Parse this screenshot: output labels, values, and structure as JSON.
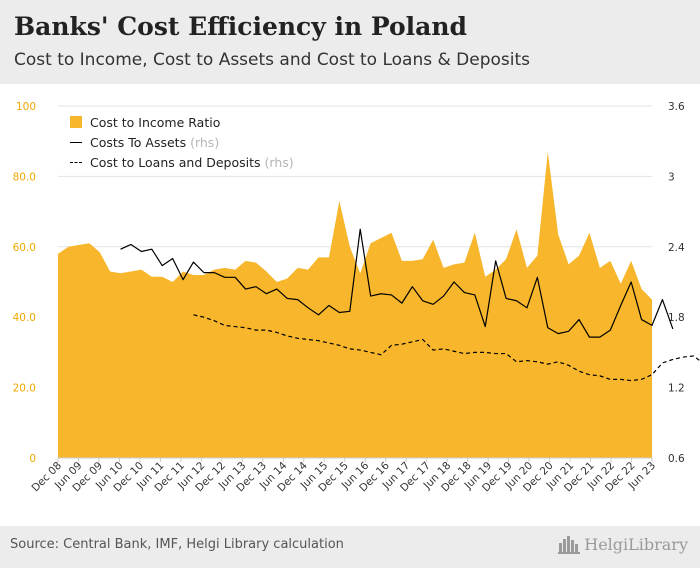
{
  "header": {
    "title": "Banks' Cost Efficiency in Poland",
    "subtitle": "Cost to Income, Cost to Assets and Cost to Loans & Deposits"
  },
  "footer": {
    "source": "Source: Central Bank, IMF, Helgi Library calculation",
    "brand": "HelgiLibrary",
    "brand_icon": "city-skyline-icon"
  },
  "legend": {
    "items": [
      {
        "label": "Cost to Income Ratio",
        "suffix": ""
      },
      {
        "label": "Costs To Assets",
        "suffix": "(rhs)"
      },
      {
        "label": "Cost to Loans and Deposits",
        "suffix": "(rhs)"
      }
    ]
  },
  "colors": {
    "area": "#f7b62b",
    "left_axis_text": "#f0a800",
    "right_axis_text": "#333333",
    "grid": "#e3e3e3"
  },
  "chart_data": {
    "type": "area",
    "left_axis": {
      "ylim": [
        0,
        100
      ],
      "ticks": [
        "0",
        "20.0",
        "40.0",
        "60.0",
        "80.0",
        "100"
      ]
    },
    "right_axis": {
      "ylim": [
        0.6,
        3.6
      ],
      "ticks": [
        "0.6",
        "1.2",
        "1.8",
        "2.4",
        "3",
        "3.6"
      ]
    },
    "x_labels": [
      "Dec 08",
      "Jun 09",
      "Dec 09",
      "Jun 10",
      "Dec 10",
      "Jun 11",
      "Dec 11",
      "Jun 12",
      "Dec 12",
      "Jun 13",
      "Dec 13",
      "Jun 14",
      "Dec 14",
      "Jun 15",
      "Dec 15",
      "Jun 16",
      "Dec 16",
      "Jun 17",
      "Dec 17",
      "Jun 18",
      "Dec 18",
      "Jun 19",
      "Dec 19",
      "Jun 20",
      "Dec 20",
      "Jun 21",
      "Dec 21",
      "Jun 22",
      "Dec 22",
      "Jun 23"
    ],
    "series": [
      {
        "name": "Cost to Income Ratio",
        "axis": "left",
        "style": "area",
        "values": [
          58.0,
          60.0,
          60.5,
          61.0,
          58.5,
          53.0,
          52.5,
          53.0,
          53.5,
          51.5,
          51.5,
          50.0,
          53.0,
          52.0,
          52.0,
          53.5,
          54.0,
          53.5,
          56.0,
          55.5,
          53.0,
          50.0,
          51.0,
          54.0,
          53.5,
          57.0,
          57.0,
          73.0,
          60.0,
          52.5,
          61.0,
          62.5,
          64.0,
          56.0,
          56.0,
          56.5,
          62.0,
          54.0,
          55.0,
          55.5,
          64.0,
          51.5,
          53.5,
          56.5,
          65.0,
          54.0,
          57.5,
          87.0,
          63.5,
          55.0,
          57.5,
          64.0,
          54.0,
          56.0,
          49.5,
          56.0,
          48.0,
          45.0
        ]
      },
      {
        "name": "Costs To Assets",
        "axis": "right",
        "style": "solid",
        "start_index": 6,
        "values": [
          2.38,
          2.42,
          2.36,
          2.38,
          2.24,
          2.3,
          2.12,
          2.27,
          2.18,
          2.18,
          2.14,
          2.14,
          2.04,
          2.06,
          2.0,
          2.04,
          1.96,
          1.95,
          1.88,
          1.82,
          1.9,
          1.84,
          1.85,
          2.55,
          1.98,
          2.0,
          1.99,
          1.92,
          2.06,
          1.94,
          1.91,
          1.98,
          2.1,
          2.01,
          1.99,
          1.72,
          2.28,
          1.96,
          1.94,
          1.88,
          2.14,
          1.71,
          1.66,
          1.68,
          1.78,
          1.63,
          1.63,
          1.69,
          1.9,
          2.1,
          1.78,
          1.73,
          1.95,
          1.7
        ]
      },
      {
        "name": "Cost to Loans and Deposits",
        "axis": "right",
        "style": "dashed",
        "start_index": 13,
        "values": [
          1.82,
          1.8,
          1.77,
          1.73,
          1.72,
          1.71,
          1.69,
          1.69,
          1.67,
          1.64,
          1.62,
          1.61,
          1.6,
          1.58,
          1.56,
          1.53,
          1.52,
          1.5,
          1.48,
          1.56,
          1.57,
          1.59,
          1.61,
          1.52,
          1.53,
          1.51,
          1.49,
          1.5,
          1.5,
          1.49,
          1.49,
          1.42,
          1.43,
          1.42,
          1.4,
          1.42,
          1.39,
          1.34,
          1.31,
          1.3,
          1.27,
          1.27,
          1.26,
          1.27,
          1.31,
          1.41,
          1.44,
          1.46,
          1.47,
          1.4
        ]
      }
    ]
  }
}
